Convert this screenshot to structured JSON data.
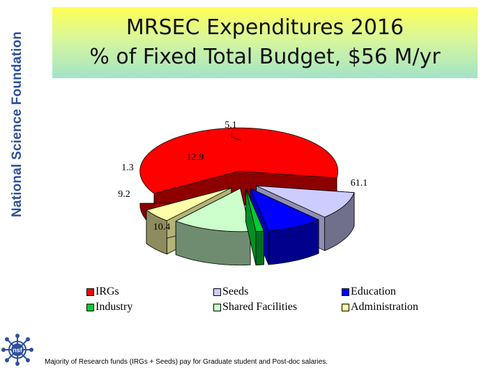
{
  "sidebar": {
    "title": "National Science Foundation",
    "logo_text": "nsf"
  },
  "header": {
    "title_line1": "MRSEC Expenditures 2016",
    "title_line2": "% of Fixed Total Budget, $56 M/yr"
  },
  "chart_data": {
    "type": "pie",
    "style": "3d-exploded",
    "title": "MRSEC Expenditures 2016 % of Fixed Total Budget, $56 M/yr",
    "slices": [
      {
        "label": "IRGs",
        "value": 61.1,
        "color": "#ff0000"
      },
      {
        "label": "Seeds",
        "value": 10.4,
        "color": "#ccccff"
      },
      {
        "label": "Education",
        "value": 9.2,
        "color": "#0000ff"
      },
      {
        "label": "Industry",
        "value": 1.3,
        "color": "#00cc33"
      },
      {
        "label": "Shared Facilities",
        "value": 12.9,
        "color": "#ccffcc"
      },
      {
        "label": "Administration",
        "value": 5.1,
        "color": "#ffffaa"
      }
    ],
    "data_labels": [
      "61.1",
      "10.4",
      "9.2",
      "1.3",
      "12.9",
      "5.1"
    ],
    "legend_position": "bottom"
  },
  "legend": {
    "items": [
      {
        "label": "IRGs",
        "color": "#ff0000"
      },
      {
        "label": "Seeds",
        "color": "#ccccff"
      },
      {
        "label": "Education",
        "color": "#0000ff"
      },
      {
        "label": "Industry",
        "color": "#00cc33"
      },
      {
        "label": "Shared Facilities",
        "color": "#ccffcc"
      },
      {
        "label": "Administration",
        "color": "#ffffaa"
      }
    ]
  },
  "footnote": "Majority of Research funds (IRGs + Seeds) pay for Graduate student and Post-doc salaries."
}
